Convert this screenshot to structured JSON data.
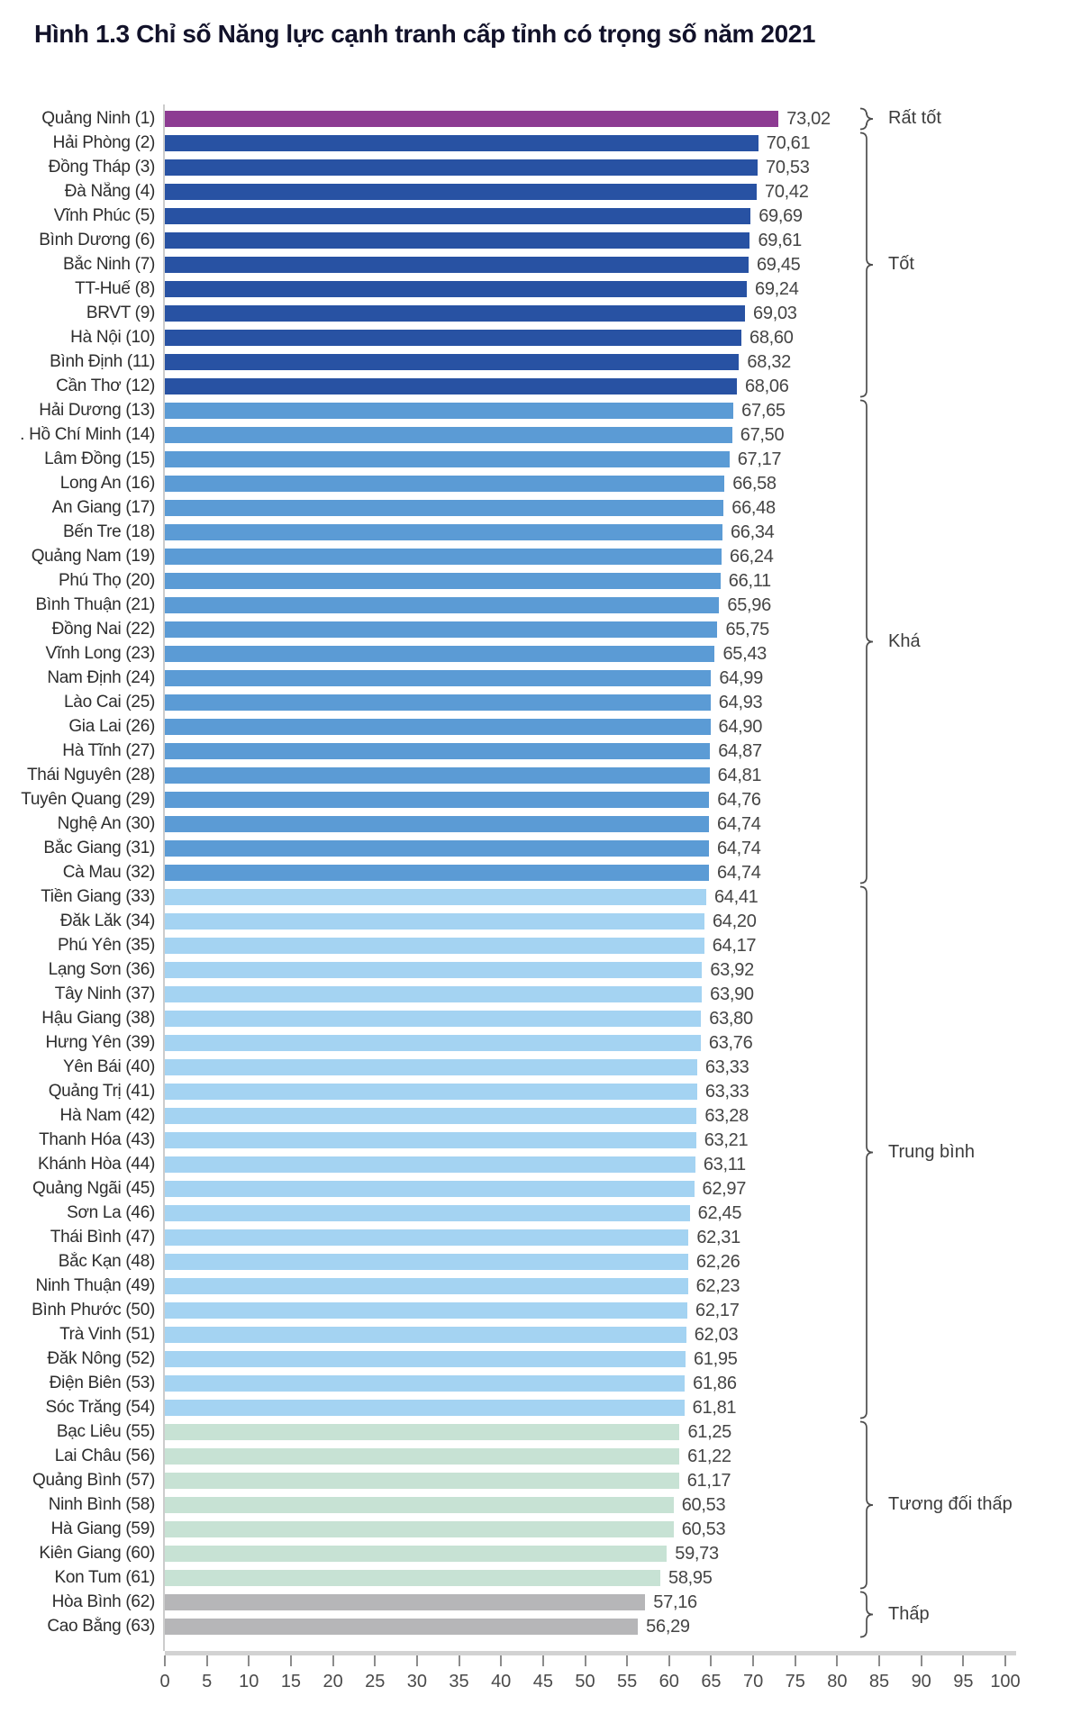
{
  "title": "Hình 1.3 Chỉ số Năng lực cạnh tranh cấp tỉnh có trọng số năm 2021",
  "colors": {
    "axis_line": "#d2d2d2",
    "axis_tick": "#8c8c8c",
    "axis_text": "#4a4a4a",
    "bracket": "#4d4d4d",
    "bar_label_text": "#454545",
    "category_text": "#2d2d2d"
  },
  "groups": [
    {
      "label": "Rất tốt",
      "first_rank": 1,
      "last_rank": 1,
      "color": "#8d3b92"
    },
    {
      "label": "Tốt",
      "first_rank": 2,
      "last_rank": 12,
      "color": "#2852a3"
    },
    {
      "label": "Khá",
      "first_rank": 13,
      "last_rank": 32,
      "color": "#5b9bd5"
    },
    {
      "label": "Trung bình",
      "first_rank": 33,
      "last_rank": 54,
      "color": "#a4d3f2"
    },
    {
      "label": "Tương đối thấp",
      "first_rank": 55,
      "last_rank": 61,
      "color": "#c7e2d4"
    },
    {
      "label": "Thấp",
      "first_rank": 62,
      "last_rank": 63,
      "color": "#b6b6b8"
    }
  ],
  "chart_data": {
    "type": "bar",
    "orientation": "horizontal",
    "title": "Hình 1.3 Chỉ số Năng lực cạnh tranh cấp tỉnh có trọng số năm 2021",
    "xlabel": "",
    "ylabel": "",
    "xlim": [
      0,
      100
    ],
    "x_ticks": [
      0,
      5,
      10,
      15,
      20,
      25,
      30,
      35,
      40,
      45,
      50,
      55,
      60,
      65,
      70,
      75,
      80,
      85,
      90,
      95,
      100
    ],
    "grid": false,
    "value_label_format": "comma-decimal, 2 digits",
    "legend_position": "right-brackets",
    "bars": [
      {
        "label": "Quảng Ninh (1)",
        "value": 73.02,
        "group": "Rất tốt"
      },
      {
        "label": "Hải Phòng (2)",
        "value": 70.61,
        "group": "Tốt"
      },
      {
        "label": "Đồng Tháp (3)",
        "value": 70.53,
        "group": "Tốt"
      },
      {
        "label": "Đà Nẵng (4)",
        "value": 70.42,
        "group": "Tốt"
      },
      {
        "label": "Vĩnh Phúc (5)",
        "value": 69.69,
        "group": "Tốt"
      },
      {
        "label": "Bình Dương (6)",
        "value": 69.61,
        "group": "Tốt"
      },
      {
        "label": "Bắc Ninh (7)",
        "value": 69.45,
        "group": "Tốt"
      },
      {
        "label": "TT-Huế (8)",
        "value": 69.24,
        "group": "Tốt"
      },
      {
        "label": "BRVT (9)",
        "value": 69.03,
        "group": "Tốt"
      },
      {
        "label": "Hà Nội (10)",
        "value": 68.6,
        "group": "Tốt"
      },
      {
        "label": "Bình Định (11)",
        "value": 68.32,
        "group": "Tốt"
      },
      {
        "label": "Cần Thơ (12)",
        "value": 68.06,
        "group": "Tốt"
      },
      {
        "label": "Hải Dương (13)",
        "value": 67.65,
        "group": "Khá"
      },
      {
        "label": ". Hồ Chí Minh (14)",
        "value": 67.5,
        "group": "Khá"
      },
      {
        "label": "Lâm Đồng (15)",
        "value": 67.17,
        "group": "Khá"
      },
      {
        "label": "Long An (16)",
        "value": 66.58,
        "group": "Khá"
      },
      {
        "label": "An Giang (17)",
        "value": 66.48,
        "group": "Khá"
      },
      {
        "label": "Bến Tre (18)",
        "value": 66.34,
        "group": "Khá"
      },
      {
        "label": "Quảng Nam (19)",
        "value": 66.24,
        "group": "Khá"
      },
      {
        "label": "Phú Thọ (20)",
        "value": 66.11,
        "group": "Khá"
      },
      {
        "label": "Bình Thuận (21)",
        "value": 65.96,
        "group": "Khá"
      },
      {
        "label": "Đồng Nai (22)",
        "value": 65.75,
        "group": "Khá"
      },
      {
        "label": "Vĩnh Long (23)",
        "value": 65.43,
        "group": "Khá"
      },
      {
        "label": "Nam Định (24)",
        "value": 64.99,
        "group": "Khá"
      },
      {
        "label": "Lào Cai (25)",
        "value": 64.93,
        "group": "Khá"
      },
      {
        "label": "Gia Lai (26)",
        "value": 64.9,
        "group": "Khá"
      },
      {
        "label": "Hà Tĩnh (27)",
        "value": 64.87,
        "group": "Khá"
      },
      {
        "label": "Thái Nguyên (28)",
        "value": 64.81,
        "group": "Khá"
      },
      {
        "label": "Tuyên Quang (29)",
        "value": 64.76,
        "group": "Khá"
      },
      {
        "label": "Nghệ An (30)",
        "value": 64.74,
        "group": "Khá"
      },
      {
        "label": "Bắc Giang (31)",
        "value": 64.74,
        "group": "Khá"
      },
      {
        "label": "Cà Mau (32)",
        "value": 64.74,
        "group": "Khá"
      },
      {
        "label": "Tiền Giang (33)",
        "value": 64.41,
        "group": "Trung bình"
      },
      {
        "label": "Đăk Lăk (34)",
        "value": 64.2,
        "group": "Trung bình"
      },
      {
        "label": "Phú Yên (35)",
        "value": 64.17,
        "group": "Trung bình"
      },
      {
        "label": "Lạng Sơn (36)",
        "value": 63.92,
        "group": "Trung bình"
      },
      {
        "label": "Tây Ninh (37)",
        "value": 63.9,
        "group": "Trung bình"
      },
      {
        "label": "Hậu Giang (38)",
        "value": 63.8,
        "group": "Trung bình"
      },
      {
        "label": "Hưng Yên (39)",
        "value": 63.76,
        "group": "Trung bình"
      },
      {
        "label": "Yên Bái (40)",
        "value": 63.33,
        "group": "Trung bình"
      },
      {
        "label": "Quảng Trị (41)",
        "value": 63.33,
        "group": "Trung bình"
      },
      {
        "label": "Hà Nam (42)",
        "value": 63.28,
        "group": "Trung bình"
      },
      {
        "label": "Thanh Hóa (43)",
        "value": 63.21,
        "group": "Trung bình"
      },
      {
        "label": "Khánh Hòa (44)",
        "value": 63.11,
        "group": "Trung bình"
      },
      {
        "label": "Quảng Ngãi (45)",
        "value": 62.97,
        "group": "Trung bình"
      },
      {
        "label": "Sơn La (46)",
        "value": 62.45,
        "group": "Trung bình"
      },
      {
        "label": "Thái Bình (47)",
        "value": 62.31,
        "group": "Trung bình"
      },
      {
        "label": "Bắc Kạn (48)",
        "value": 62.26,
        "group": "Trung bình"
      },
      {
        "label": "Ninh Thuận (49)",
        "value": 62.23,
        "group": "Trung bình"
      },
      {
        "label": "Bình Phước (50)",
        "value": 62.17,
        "group": "Trung bình"
      },
      {
        "label": "Trà Vinh (51)",
        "value": 62.03,
        "group": "Trung bình"
      },
      {
        "label": "Đăk Nông (52)",
        "value": 61.95,
        "group": "Trung bình"
      },
      {
        "label": "Điện Biên (53)",
        "value": 61.86,
        "group": "Trung bình"
      },
      {
        "label": "Sóc Trăng (54)",
        "value": 61.81,
        "group": "Trung bình"
      },
      {
        "label": "Bạc Liêu (55)",
        "value": 61.25,
        "group": "Tương đối thấp"
      },
      {
        "label": "Lai Châu (56)",
        "value": 61.22,
        "group": "Tương đối thấp"
      },
      {
        "label": "Quảng Bình (57)",
        "value": 61.17,
        "group": "Tương đối thấp"
      },
      {
        "label": "Ninh Bình (58)",
        "value": 60.53,
        "group": "Tương đối thấp"
      },
      {
        "label": "Hà Giang (59)",
        "value": 60.53,
        "group": "Tương đối thấp"
      },
      {
        "label": "Kiên Giang (60)",
        "value": 59.73,
        "group": "Tương đối thấp"
      },
      {
        "label": "Kon Tum (61)",
        "value": 58.95,
        "group": "Tương đối thấp"
      },
      {
        "label": "Hòa Bình (62)",
        "value": 57.16,
        "group": "Thấp"
      },
      {
        "label": "Cao Bằng (63)",
        "value": 56.29,
        "group": "Thấp"
      }
    ]
  }
}
